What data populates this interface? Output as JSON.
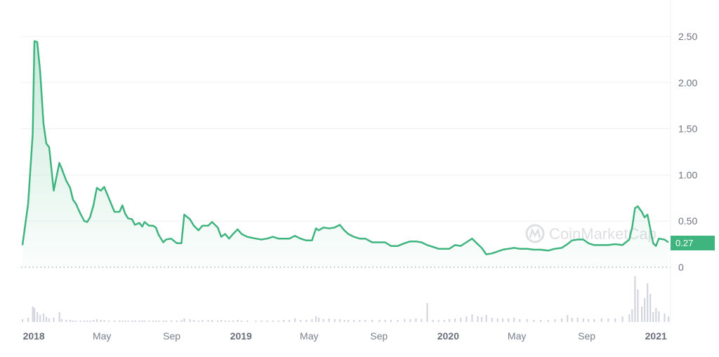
{
  "chart_data": {
    "type": "area",
    "title": "",
    "xlabel": "",
    "ylabel": "",
    "ylim": [
      0,
      2.5
    ],
    "xlim": [
      "2017-12-12",
      "2021-01-23"
    ],
    "y_ticks": [
      "0",
      "0.50",
      "1.00",
      "1.50",
      "2.00",
      "2.50"
    ],
    "y_axis_position": "right",
    "x_ticks": [
      {
        "label": "2018",
        "date": "2018-01-01",
        "bold": true
      },
      {
        "label": "May",
        "date": "2018-05-01",
        "bold": false
      },
      {
        "label": "Sep",
        "date": "2018-09-01",
        "bold": false
      },
      {
        "label": "2019",
        "date": "2019-01-01",
        "bold": true
      },
      {
        "label": "May",
        "date": "2019-05-01",
        "bold": false
      },
      {
        "label": "Sep",
        "date": "2019-09-01",
        "bold": false
      },
      {
        "label": "2020",
        "date": "2020-01-01",
        "bold": true
      },
      {
        "label": "May",
        "date": "2020-05-01",
        "bold": false
      },
      {
        "label": "Sep",
        "date": "2020-09-01",
        "bold": false
      },
      {
        "label": "2021",
        "date": "2021-01-01",
        "bold": true
      }
    ],
    "grid": true,
    "current_price_label": "0.27",
    "watermark": "CoinMarketCap",
    "colors": {
      "line": "#3fb47f",
      "fill": "#3fb47f",
      "badge": "#3fb47f",
      "volume": "#d3d6df",
      "grid": "#f0f1f3"
    },
    "columns": [
      "date",
      "price",
      "volume_relative"
    ],
    "points": [
      [
        "2017-12-12",
        0.24,
        4
      ],
      [
        "2017-12-22",
        0.69,
        6
      ],
      [
        "2017-12-30",
        1.45,
        22
      ],
      [
        "2018-01-02",
        2.45,
        20
      ],
      [
        "2018-01-07",
        2.44,
        14
      ],
      [
        "2018-01-12",
        2.13,
        10
      ],
      [
        "2018-01-18",
        1.56,
        12
      ],
      [
        "2018-01-23",
        1.34,
        7
      ],
      [
        "2018-01-28",
        1.3,
        5
      ],
      [
        "2018-02-05",
        0.83,
        6
      ],
      [
        "2018-02-15",
        1.13,
        14
      ],
      [
        "2018-02-19",
        1.07,
        4
      ],
      [
        "2018-02-27",
        0.94,
        3
      ],
      [
        "2018-03-06",
        0.86,
        3
      ],
      [
        "2018-03-11",
        0.73,
        2
      ],
      [
        "2018-03-16",
        0.69,
        2
      ],
      [
        "2018-03-24",
        0.58,
        2
      ],
      [
        "2018-03-31",
        0.5,
        2
      ],
      [
        "2018-04-05",
        0.49,
        2
      ],
      [
        "2018-04-10",
        0.54,
        2
      ],
      [
        "2018-04-16",
        0.67,
        3
      ],
      [
        "2018-04-22",
        0.86,
        4
      ],
      [
        "2018-04-29",
        0.83,
        3
      ],
      [
        "2018-05-05",
        0.87,
        3
      ],
      [
        "2018-05-13",
        0.75,
        2
      ],
      [
        "2018-05-23",
        0.6,
        2
      ],
      [
        "2018-06-01",
        0.6,
        2
      ],
      [
        "2018-06-06",
        0.67,
        2
      ],
      [
        "2018-06-11",
        0.58,
        2
      ],
      [
        "2018-06-16",
        0.53,
        2
      ],
      [
        "2018-06-23",
        0.52,
        2
      ],
      [
        "2018-06-28",
        0.46,
        2
      ],
      [
        "2018-07-06",
        0.48,
        2
      ],
      [
        "2018-07-11",
        0.44,
        2
      ],
      [
        "2018-07-15",
        0.49,
        2
      ],
      [
        "2018-07-23",
        0.45,
        2
      ],
      [
        "2018-07-30",
        0.45,
        2
      ],
      [
        "2018-08-04",
        0.43,
        2
      ],
      [
        "2018-08-09",
        0.35,
        2
      ],
      [
        "2018-08-17",
        0.27,
        2
      ],
      [
        "2018-08-22",
        0.3,
        2
      ],
      [
        "2018-08-31",
        0.31,
        2
      ],
      [
        "2018-09-10",
        0.26,
        2
      ],
      [
        "2018-09-18",
        0.26,
        3
      ],
      [
        "2018-09-23",
        0.57,
        5
      ],
      [
        "2018-10-03",
        0.52,
        4
      ],
      [
        "2018-10-10",
        0.45,
        3
      ],
      [
        "2018-10-18",
        0.4,
        2
      ],
      [
        "2018-10-25",
        0.45,
        3
      ],
      [
        "2018-11-04",
        0.45,
        3
      ],
      [
        "2018-11-11",
        0.49,
        3
      ],
      [
        "2018-11-21",
        0.43,
        2
      ],
      [
        "2018-11-27",
        0.33,
        3
      ],
      [
        "2018-12-04",
        0.36,
        2
      ],
      [
        "2018-12-11",
        0.31,
        2
      ],
      [
        "2018-12-18",
        0.36,
        2
      ],
      [
        "2018-12-26",
        0.41,
        3
      ],
      [
        "2019-01-02",
        0.36,
        2
      ],
      [
        "2019-01-12",
        0.33,
        2
      ],
      [
        "2019-01-27",
        0.31,
        2
      ],
      [
        "2019-02-06",
        0.3,
        2
      ],
      [
        "2019-02-16",
        0.31,
        2
      ],
      [
        "2019-02-26",
        0.33,
        2
      ],
      [
        "2019-03-08",
        0.31,
        2
      ],
      [
        "2019-03-17",
        0.31,
        3
      ],
      [
        "2019-03-27",
        0.31,
        3
      ],
      [
        "2019-04-06",
        0.34,
        5
      ],
      [
        "2019-04-16",
        0.31,
        3
      ],
      [
        "2019-04-26",
        0.29,
        3
      ],
      [
        "2019-05-06",
        0.29,
        4
      ],
      [
        "2019-05-13",
        0.42,
        8
      ],
      [
        "2019-05-18",
        0.4,
        6
      ],
      [
        "2019-05-26",
        0.43,
        4
      ],
      [
        "2019-06-05",
        0.42,
        5
      ],
      [
        "2019-06-15",
        0.43,
        4
      ],
      [
        "2019-06-24",
        0.46,
        4
      ],
      [
        "2019-07-02",
        0.4,
        3
      ],
      [
        "2019-07-09",
        0.36,
        3
      ],
      [
        "2019-07-19",
        0.33,
        3
      ],
      [
        "2019-07-29",
        0.31,
        3
      ],
      [
        "2019-08-08",
        0.31,
        3
      ],
      [
        "2019-08-20",
        0.27,
        3
      ],
      [
        "2019-09-02",
        0.27,
        3
      ],
      [
        "2019-09-12",
        0.27,
        3
      ],
      [
        "2019-09-22",
        0.23,
        3
      ],
      [
        "2019-10-04",
        0.23,
        3
      ],
      [
        "2019-10-16",
        0.26,
        4
      ],
      [
        "2019-10-26",
        0.28,
        4
      ],
      [
        "2019-11-05",
        0.28,
        5
      ],
      [
        "2019-11-15",
        0.27,
        4
      ],
      [
        "2019-11-25",
        0.24,
        27
      ],
      [
        "2019-12-05",
        0.22,
        3
      ],
      [
        "2019-12-15",
        0.2,
        3
      ],
      [
        "2019-12-25",
        0.2,
        3
      ],
      [
        "2020-01-03",
        0.2,
        4
      ],
      [
        "2020-01-13",
        0.24,
        5
      ],
      [
        "2020-01-23",
        0.23,
        6
      ],
      [
        "2020-02-02",
        0.27,
        8
      ],
      [
        "2020-02-12",
        0.31,
        11
      ],
      [
        "2020-02-22",
        0.25,
        8
      ],
      [
        "2020-02-29",
        0.21,
        7
      ],
      [
        "2020-03-08",
        0.14,
        10
      ],
      [
        "2020-03-18",
        0.15,
        6
      ],
      [
        "2020-03-28",
        0.17,
        5
      ],
      [
        "2020-04-06",
        0.19,
        5
      ],
      [
        "2020-04-16",
        0.2,
        5
      ],
      [
        "2020-04-26",
        0.21,
        6
      ],
      [
        "2020-05-06",
        0.2,
        4
      ],
      [
        "2020-05-19",
        0.2,
        4
      ],
      [
        "2020-05-31",
        0.19,
        3
      ],
      [
        "2020-06-12",
        0.19,
        3
      ],
      [
        "2020-06-25",
        0.18,
        3
      ],
      [
        "2020-07-07",
        0.2,
        4
      ],
      [
        "2020-07-19",
        0.21,
        5
      ],
      [
        "2020-07-29",
        0.25,
        10
      ],
      [
        "2020-08-06",
        0.29,
        6
      ],
      [
        "2020-08-16",
        0.3,
        6
      ],
      [
        "2020-08-26",
        0.3,
        5
      ],
      [
        "2020-09-04",
        0.26,
        4
      ],
      [
        "2020-09-14",
        0.24,
        4
      ],
      [
        "2020-09-27",
        0.24,
        5
      ],
      [
        "2020-10-09",
        0.24,
        5
      ],
      [
        "2020-10-21",
        0.25,
        5
      ],
      [
        "2020-11-03",
        0.24,
        8
      ],
      [
        "2020-11-15",
        0.3,
        11
      ],
      [
        "2020-11-20",
        0.43,
        18
      ],
      [
        "2020-11-25",
        0.64,
        65
      ],
      [
        "2020-11-30",
        0.66,
        46
      ],
      [
        "2020-12-07",
        0.6,
        22
      ],
      [
        "2020-12-12",
        0.54,
        34
      ],
      [
        "2020-12-17",
        0.57,
        55
      ],
      [
        "2020-12-22",
        0.42,
        40
      ],
      [
        "2020-12-27",
        0.26,
        14
      ],
      [
        "2021-01-01",
        0.23,
        20
      ],
      [
        "2021-01-06",
        0.31,
        15
      ],
      [
        "2021-01-16",
        0.3,
        12
      ],
      [
        "2021-01-23",
        0.27,
        8
      ]
    ]
  }
}
